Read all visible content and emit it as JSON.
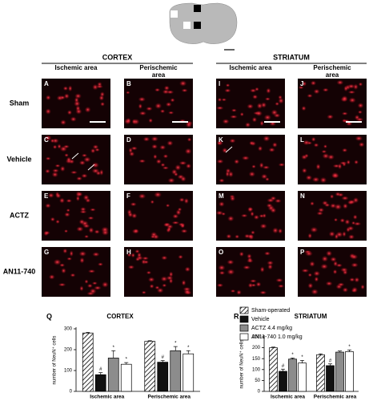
{
  "micrographs": {
    "columns": [
      {
        "region": "CORTEX",
        "areas": [
          "Ischemic area",
          "Perischemic area"
        ]
      },
      {
        "region": "STRIATUM",
        "areas": [
          "Ischemic area",
          "Perischemic area"
        ]
      }
    ],
    "rows": [
      "Sham",
      "Vehicle",
      "ACTZ",
      "AN11-740"
    ],
    "panel_letters": [
      [
        "A",
        "B",
        "I",
        "J"
      ],
      [
        "C",
        "D",
        "K",
        "L"
      ],
      [
        "E",
        "F",
        "M",
        "N"
      ],
      [
        "G",
        "H",
        "O",
        "P"
      ]
    ]
  },
  "chart_data": [
    {
      "type": "bar",
      "panel_label": "Q",
      "title": "CORTEX",
      "y_label": "number of NeuN⁺ cells",
      "categories": [
        "Ischemic area",
        "Perischemic area"
      ],
      "ylim": [
        0,
        300
      ],
      "yticks": [
        0,
        100,
        200,
        300
      ],
      "series": [
        {
          "name": "Sham-operated",
          "color": "#ffffff",
          "pattern": "hatch",
          "values": [
            280,
            240
          ],
          "errors": [
            3,
            3
          ]
        },
        {
          "name": "Vehicle",
          "color": "#111111",
          "values": [
            80,
            140
          ],
          "errors": [
            10,
            8
          ],
          "significance": [
            "#",
            "#"
          ]
        },
        {
          "name": "ACTZ 4.4 mg/kg",
          "color": "#8c8c8c",
          "values": [
            160,
            195
          ],
          "errors": [
            35,
            20
          ],
          "significance": [
            "*",
            "*"
          ]
        },
        {
          "name": "AN11-740 1.0 mg/kg",
          "color": "#ffffff",
          "values": [
            130,
            180
          ],
          "errors": [
            8,
            15
          ],
          "significance": [
            "*",
            "*"
          ]
        }
      ]
    },
    {
      "type": "bar",
      "panel_label": "R",
      "title": "STRIATUM",
      "y_label": "number of NeuN⁺ cells",
      "categories": [
        "Ischemic area",
        "Perischemic area"
      ],
      "ylim": [
        0,
        250
      ],
      "yticks": [
        0,
        50,
        100,
        150,
        200,
        250
      ],
      "series": [
        {
          "color": "#ffffff",
          "pattern": "hatch",
          "values": [
            200,
            168
          ],
          "errors": [
            3,
            4
          ]
        },
        {
          "color": "#111111",
          "values": [
            92,
            118
          ],
          "errors": [
            10,
            8
          ],
          "significance": [
            "#",
            "#"
          ]
        },
        {
          "color": "#8c8c8c",
          "values": [
            148,
            180
          ],
          "errors": [
            5,
            5
          ],
          "significance": [
            "*",
            null
          ]
        },
        {
          "color": "#ffffff",
          "values": [
            130,
            182
          ],
          "errors": [
            12,
            8
          ],
          "significance": [
            "*",
            "*"
          ]
        }
      ]
    }
  ]
}
